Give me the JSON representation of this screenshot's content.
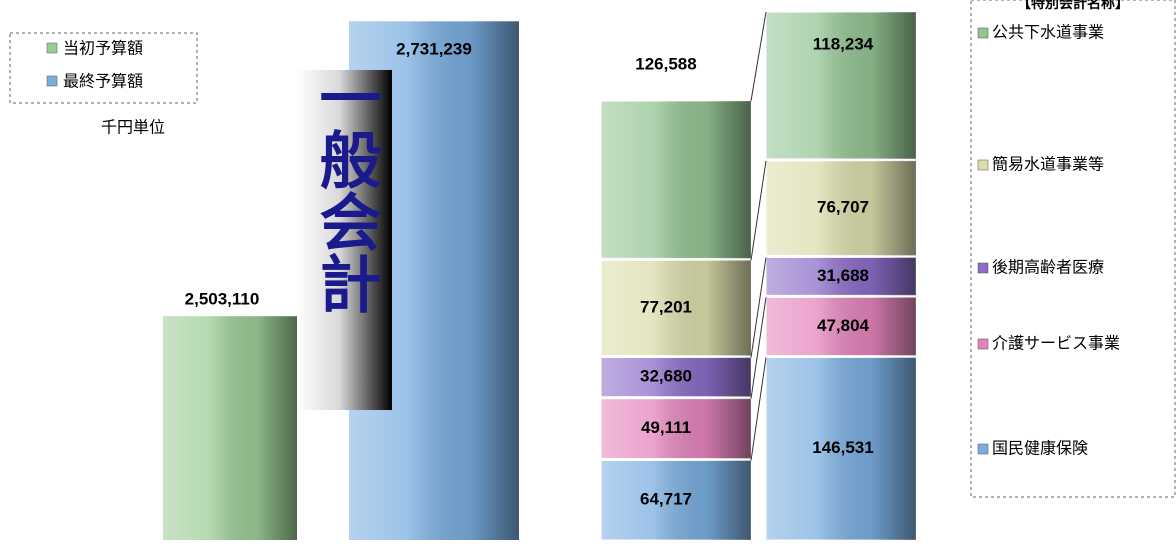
{
  "chart_data": [
    {
      "type": "bar",
      "title": "一般会計",
      "unit": "千円単位",
      "series": [
        {
          "name": "当初予算額",
          "color": "#9ccc96",
          "values": [
            2503110
          ],
          "value_labels": [
            "2,503,110"
          ]
        },
        {
          "name": "最終予算額",
          "color": "#7aaee0",
          "values": [
            2731239
          ],
          "value_labels": [
            "2,731,239"
          ]
        }
      ],
      "ylim": [
        2330000,
        2740000
      ]
    },
    {
      "type": "stacked_bar",
      "title": "【特別会計名称】",
      "series": [
        {
          "name": "国民健康保険",
          "color": "#7aaee0",
          "values": [
            64717,
            146531
          ],
          "value_labels": [
            "64,717",
            "146,531"
          ]
        },
        {
          "name": "介護サービス事業",
          "color": "#e484bc",
          "values": [
            49111,
            47804
          ],
          "value_labels": [
            "49,111",
            "47,804"
          ]
        },
        {
          "name": "後期高齢者医療",
          "color": "#8c6cc8",
          "values": [
            32680,
            31688
          ],
          "value_labels": [
            "32,680",
            "31,688"
          ]
        },
        {
          "name": "簡易水道事業等",
          "color": "#dcdcac",
          "values": [
            77201,
            76707
          ],
          "value_labels": [
            "77,201",
            "76,707"
          ]
        },
        {
          "name": "公共下水道事業",
          "color": "#94c494",
          "values": [
            126588,
            118234
          ],
          "value_labels": [
            "126,588",
            "118,234"
          ]
        }
      ],
      "ylim": [
        0,
        421000
      ]
    }
  ]
}
